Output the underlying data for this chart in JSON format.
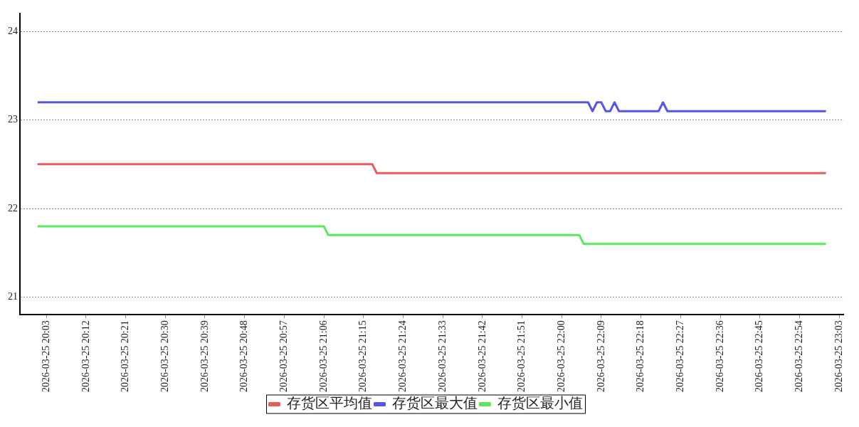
{
  "chart_data": {
    "type": "line",
    "xlim": [
      "2026-03-25T19:57",
      "2026-03-25T23:04"
    ],
    "xticks": [
      {
        "value": "2026-03-25T20:03",
        "label": "2026-03-25 20:03"
      },
      {
        "value": "2026-03-25T20:12",
        "label": "2026-03-25 20:12"
      },
      {
        "value": "2026-03-25T20:21",
        "label": "2026-03-25 20:21"
      },
      {
        "value": "2026-03-25T20:30",
        "label": "2026-03-25 20:30"
      },
      {
        "value": "2026-03-25T20:39",
        "label": "2026-03-25 20:39"
      },
      {
        "value": "2026-03-25T20:48",
        "label": "2026-03-25 20:48"
      },
      {
        "value": "2026-03-25T20:57",
        "label": "2026-03-25 20:57"
      },
      {
        "value": "2026-03-25T21:06",
        "label": "2026-03-25 21:06"
      },
      {
        "value": "2026-03-25T21:15",
        "label": "2026-03-25 21:15"
      },
      {
        "value": "2026-03-25T21:24",
        "label": "2026-03-25 21:24"
      },
      {
        "value": "2026-03-25T21:33",
        "label": "2026-03-25 21:33"
      },
      {
        "value": "2026-03-25T21:42",
        "label": "2026-03-25 21:42"
      },
      {
        "value": "2026-03-25T21:51",
        "label": "2026-03-25 21:51"
      },
      {
        "value": "2026-03-25T22:00",
        "label": "2026-03-25 22:00"
      },
      {
        "value": "2026-03-25T22:09",
        "label": "2026-03-25 22:09"
      },
      {
        "value": "2026-03-25T22:18",
        "label": "2026-03-25 22:18"
      },
      {
        "value": "2026-03-25T22:27",
        "label": "2026-03-25 22:27"
      },
      {
        "value": "2026-03-25T22:36",
        "label": "2026-03-25 22:36"
      },
      {
        "value": "2026-03-25T22:45",
        "label": "2026-03-25 22:45"
      },
      {
        "value": "2026-03-25T22:54",
        "label": "2026-03-25 22:54"
      },
      {
        "value": "2026-03-25T23:03",
        "label": "2026-03-25 23:03"
      }
    ],
    "ylim": [
      20.8,
      24.2
    ],
    "yticks": [
      21,
      22,
      23,
      24
    ],
    "grid": "y",
    "legend": "bottom",
    "marker": "none",
    "series": [
      {
        "name": "存货区平均值",
        "color": "#e85c5c",
        "x": [
          "2026-03-25T20:01",
          "2026-03-25T21:17",
          "2026-03-25T21:18",
          "2026-03-25T23:00"
        ],
        "values": [
          22.5,
          22.5,
          22.4,
          22.4
        ]
      },
      {
        "name": "存货区最大值",
        "color": "#5555e8",
        "x": [
          "2026-03-25T20:01",
          "2026-03-25T22:06",
          "2026-03-25T22:07",
          "2026-03-25T22:08",
          "2026-03-25T22:09",
          "2026-03-25T22:10",
          "2026-03-25T22:11",
          "2026-03-25T22:12",
          "2026-03-25T22:13",
          "2026-03-25T22:22",
          "2026-03-25T22:23",
          "2026-03-25T22:24",
          "2026-03-25T23:00"
        ],
        "values": [
          23.2,
          23.2,
          23.1,
          23.2,
          23.2,
          23.1,
          23.1,
          23.2,
          23.1,
          23.1,
          23.2,
          23.1,
          23.1
        ]
      },
      {
        "name": "存货区最小值",
        "color": "#5ce85c",
        "x": [
          "2026-03-25T20:01",
          "2026-03-25T21:06",
          "2026-03-25T21:07",
          "2026-03-25T22:04",
          "2026-03-25T22:05",
          "2026-03-25T23:00"
        ],
        "values": [
          21.8,
          21.8,
          21.7,
          21.7,
          21.6,
          21.6
        ]
      }
    ]
  }
}
